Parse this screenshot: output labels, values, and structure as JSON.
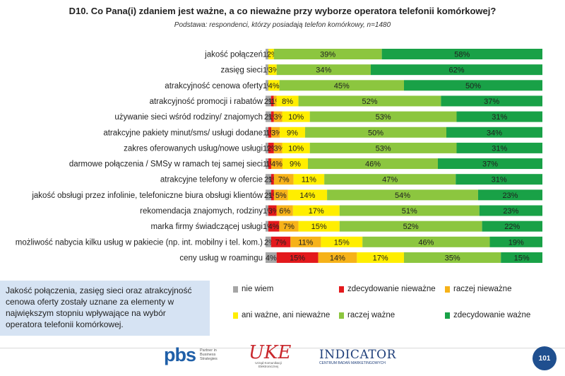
{
  "title": "D10. Co Pana(i) zdaniem jest ważne, a co nieważne przy wyborze operatora telefonii komórkowej?",
  "subtitle": "Podstawa: respondenci, którzy posiadają telefon komórkowy, n=1480",
  "chart_data": {
    "type": "bar",
    "orientation": "horizontal",
    "stacked": true,
    "categories": [
      "jakość połączeń",
      "zasięg sieci",
      "atrakcyjność cenowa oferty",
      "atrakcyjność promocji i rabatów",
      "używanie sieci wśród rodziny/ znajomych",
      "atrakcyjne pakiety minut/sms/  usługi dodane",
      "zakres oferowanych usług/nowe usługi",
      "darmowe połączenia / SMSy w ramach tej samej sieci",
      "atrakcyjne telefony w ofercie",
      "jakość obsługi przez infolinie, telefoniczne biura obsługi klientów",
      "rekomendacja znajomych, rodziny",
      "marka firmy świadczącej usługi",
      "możliwość nabycia kilku usług w pakiecie (np. int. mobilny i tel. kom.)",
      "ceny usług w roamingu"
    ],
    "series": [
      {
        "name": "nie wiem",
        "color": "#a6a6a6",
        "values": [
          1,
          1,
          1,
          2,
          2,
          1,
          1,
          1,
          2,
          2,
          1,
          1,
          2,
          4
        ]
      },
      {
        "name": "zdecydowanie nieważne",
        "color": "#e3191c",
        "values": [
          0,
          0,
          0,
          1,
          1,
          1,
          2,
          1,
          1,
          1,
          3,
          4,
          7,
          15
        ]
      },
      {
        "name": "raczej nieważne",
        "color": "#f6b219",
        "values": [
          0,
          0,
          0,
          1,
          3,
          3,
          3,
          4,
          7,
          5,
          6,
          7,
          11,
          14
        ]
      },
      {
        "name": "ani ważne, ani nieważne",
        "color": "#ffee00",
        "values": [
          2,
          3,
          4,
          8,
          10,
          9,
          10,
          9,
          11,
          14,
          17,
          15,
          15,
          17
        ]
      },
      {
        "name": "raczej ważne",
        "color": "#8cc63f",
        "values": [
          39,
          34,
          45,
          52,
          53,
          50,
          53,
          46,
          47,
          54,
          51,
          52,
          46,
          35
        ]
      },
      {
        "name": "zdecydowanie ważne",
        "color": "#19a147",
        "values": [
          58,
          62,
          50,
          37,
          31,
          34,
          31,
          37,
          31,
          23,
          23,
          22,
          19,
          15
        ]
      }
    ],
    "segment_labels": [
      [
        "1%",
        "",
        "",
        "2%",
        "39%",
        "58%"
      ],
      [
        "1%",
        "",
        "",
        "3%",
        "34%",
        "62%"
      ],
      [
        "1%",
        "",
        "",
        "4%",
        "45%",
        "50%"
      ],
      [
        "2%",
        "1%",
        "1%",
        "8%",
        "52%",
        "37%"
      ],
      [
        "2%",
        "1%",
        "3%",
        "10%",
        "53%",
        "31%"
      ],
      [
        "1%",
        "1%",
        "3%",
        "9%",
        "50%",
        "34%"
      ],
      [
        "1%",
        "2%",
        "3%",
        "10%",
        "53%",
        "31%"
      ],
      [
        "1%",
        "1%",
        "4%",
        "9%",
        "46%",
        "37%"
      ],
      [
        "2%",
        "1%",
        "7%",
        "11%",
        "47%",
        "31%"
      ],
      [
        "2%",
        "1%",
        "5%",
        "14%",
        "54%",
        "23%"
      ],
      [
        "1%",
        "3%",
        "6%",
        "17%",
        "51%",
        "23%"
      ],
      [
        "1%",
        "4%",
        "7%",
        "15%",
        "52%",
        "22%"
      ],
      [
        "2%",
        "7%",
        "11%",
        "15%",
        "46%",
        "19%"
      ],
      [
        "4%",
        "15%",
        "14%",
        "17%",
        "35%",
        "15%"
      ]
    ],
    "xlim": [
      0,
      100
    ],
    "legend_position": "bottom-right"
  },
  "note": "Jakość połączenia, zasięg sieci oraz atrakcyjność cenowa oferty zostały uznane za elementy w największym stopniu wpływające na wybór operatora telefonii komórkowej.",
  "footer": {
    "pbs_logo": "pbs",
    "pbs_tagline": "Partner in Business Strategies",
    "uke_logo": "UKE",
    "uke_tagline": "Urząd Komunikacji Elektronicznej",
    "indicator_logo": "INDICATOR",
    "indicator_tagline": "CENTRUM BADAŃ MARKETINGOWYCH",
    "page_number": "101"
  }
}
